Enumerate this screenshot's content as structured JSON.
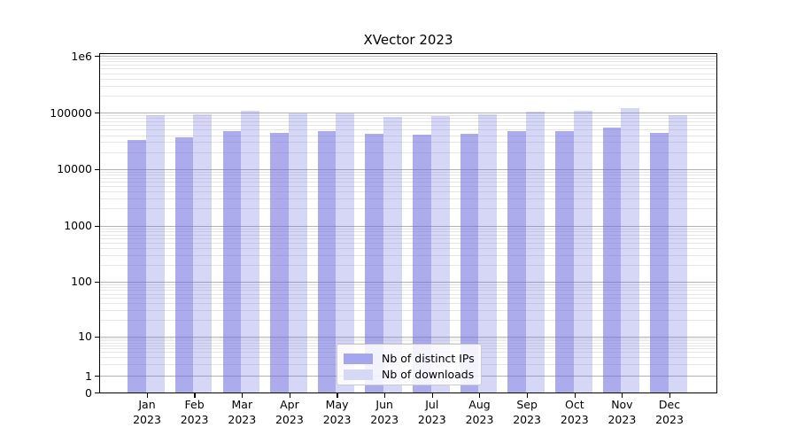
{
  "figure": {
    "title": "XVector 2023",
    "background_color": "#ffffff"
  },
  "chart_data": {
    "type": "bar",
    "title": "XVector 2023",
    "categories": [
      "Jan 2023",
      "Feb 2023",
      "Mar 2023",
      "Apr 2023",
      "May 2023",
      "Jun 2023",
      "Jul 2023",
      "Aug 2023",
      "Sep 2023",
      "Oct 2023",
      "Nov 2023",
      "Dec 2023"
    ],
    "series": [
      {
        "name": "Nb of distinct IPs",
        "fill_rgba": "rgba(104,104,223,0.55)",
        "rendered_hex": "#aaaaf0",
        "values": [
          32000,
          36000,
          46500,
          44000,
          47500,
          42500,
          40500,
          41500,
          47500,
          47000,
          55000,
          43000
        ]
      },
      {
        "name": "Nb of downloads",
        "fill_rgba": "rgba(104,104,223,0.27)",
        "rendered_hex": "#d8d8f6",
        "values": [
          91000,
          94000,
          106000,
          96000,
          98000,
          85000,
          86000,
          94000,
          103000,
          106000,
          119000,
          89000
        ]
      }
    ],
    "xlabel": "",
    "ylabel": "",
    "yscale": "log-with-zero-baseline",
    "ylim": [
      0,
      1000000
    ],
    "ytick_labels": [
      "1e6",
      "100000",
      "10000",
      "1000",
      "100",
      "10",
      "1",
      "0"
    ],
    "grid": "horizontal major and minor gridlines",
    "legend_position": "lower center"
  },
  "legend": {
    "items": [
      {
        "label": "Nb of distinct IPs",
        "swatch_color": "#a6a6ee"
      },
      {
        "label": "Nb of downloads",
        "swatch_color": "#d7d7f6"
      }
    ]
  },
  "axis_colors": {
    "spine": "#000000",
    "major_grid": "#b2b2b2",
    "minor_grid": "#e6e6e6",
    "tick_label": "#000000"
  }
}
